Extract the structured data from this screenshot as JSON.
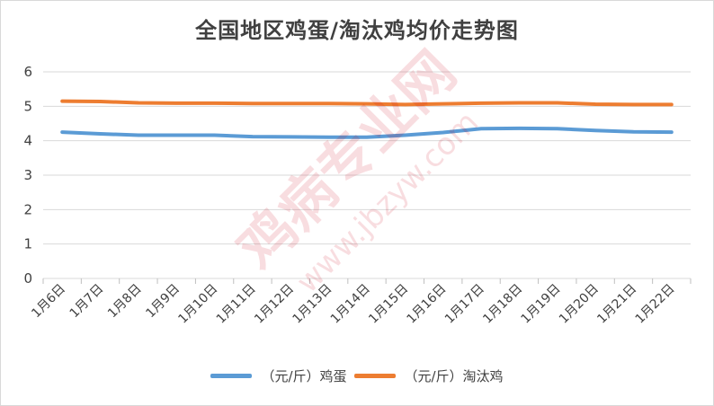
{
  "chart_data": {
    "type": "line",
    "title": "全国地区鸡蛋/淘汰鸡均价走势图",
    "categories": [
      "1月6日",
      "1月7日",
      "1月8日",
      "1月9日",
      "1月10日",
      "1月11日",
      "1月12日",
      "1月13日",
      "1月14日",
      "1月15日",
      "1月16日",
      "1月17日",
      "1月18日",
      "1月19日",
      "1月20日",
      "1月21日",
      "1月22日"
    ],
    "series": [
      {
        "name": "（元/斤）鸡蛋",
        "color": "#5b9bd5",
        "values": [
          4.25,
          4.2,
          4.16,
          4.16,
          4.16,
          4.12,
          4.11,
          4.1,
          4.1,
          4.16,
          4.24,
          4.35,
          4.36,
          4.35,
          4.3,
          4.26,
          4.25
        ]
      },
      {
        "name": "（元/斤）淘汰鸡",
        "color": "#ed7d31",
        "values": [
          5.15,
          5.14,
          5.1,
          5.09,
          5.09,
          5.08,
          5.08,
          5.08,
          5.07,
          5.05,
          5.07,
          5.09,
          5.1,
          5.1,
          5.06,
          5.05,
          5.05
        ]
      }
    ],
    "yticks": [
      0,
      1,
      2,
      3,
      4,
      5,
      6
    ],
    "ylim": [
      0,
      6
    ],
    "grid": true,
    "legend_position": "bottom",
    "xlabel": "",
    "ylabel": ""
  },
  "watermark": {
    "text": "鸡病专业网",
    "url": "www.jbzyw.com"
  }
}
